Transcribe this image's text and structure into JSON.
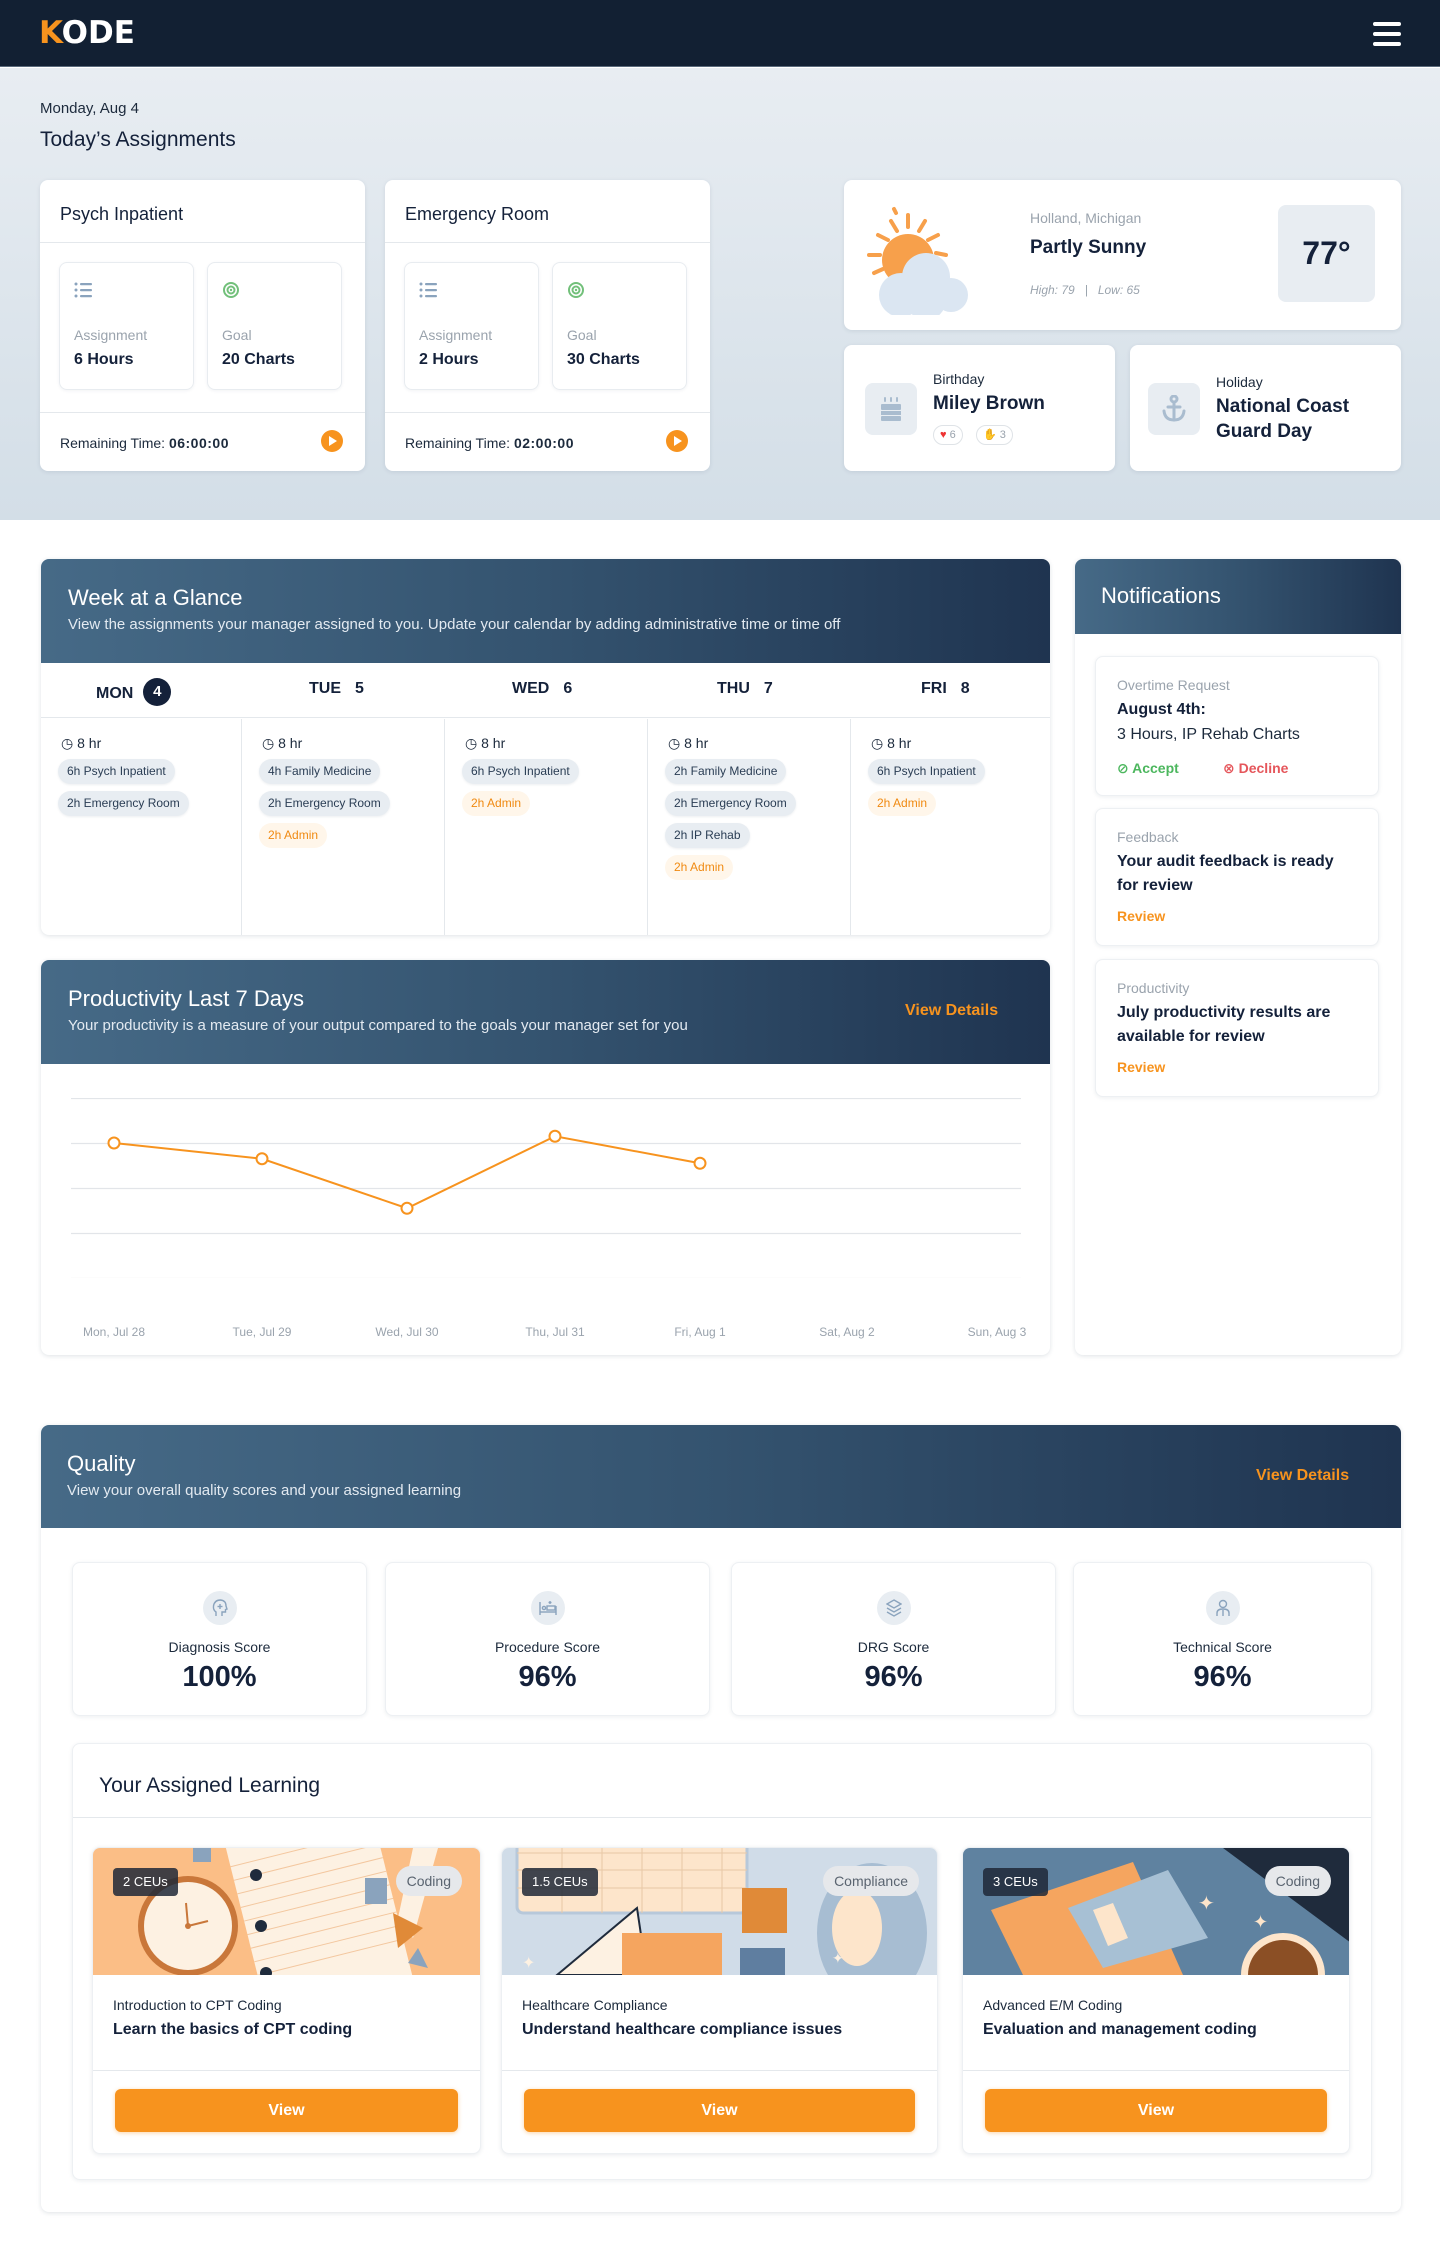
{
  "header": {
    "logo_first": "K",
    "logo_rest": "ODE",
    "menu_icon": "hamburger-menu-icon"
  },
  "today": {
    "date": "Monday, Aug 4",
    "title": "Today’s Assignments",
    "assignments": [
      {
        "title": "Psych Inpatient",
        "assignment_label": "Assignment",
        "assignment_value": "6 Hours",
        "goal_label": "Goal",
        "goal_value": "20 Charts",
        "remaining_label": "Remaining Time:",
        "remaining_value": "06:00:00"
      },
      {
        "title": "Emergency Room",
        "assignment_label": "Assignment",
        "assignment_value": "2 Hours",
        "goal_label": "Goal",
        "goal_value": "30 Charts",
        "remaining_label": "Remaining Time:",
        "remaining_value": "02:00:00"
      }
    ]
  },
  "weather": {
    "location": "Holland, Michigan",
    "condition": "Partly Sunny",
    "high_low": "High: 79   |   Low: 65",
    "temperature": "77°"
  },
  "birthday": {
    "kind": "Birthday",
    "name": "Miley Brown",
    "reactions": [
      {
        "icon": "heart",
        "count": "6"
      },
      {
        "icon": "clap",
        "count": "3"
      }
    ]
  },
  "holiday": {
    "kind": "Holiday",
    "name": "National Coast Guard Day"
  },
  "week": {
    "title": "Week at a Glance",
    "subtitle": "View the assignments your manager assigned to you. Update your calendar by adding administrative time or time off",
    "days": [
      {
        "day": "MON",
        "num": "4",
        "current": true,
        "hours": "8 hr",
        "items": [
          {
            "label": "6h Psych Inpatient",
            "type": "blue"
          },
          {
            "label": "2h Emergency Room",
            "type": "blue"
          }
        ]
      },
      {
        "day": "TUE",
        "num": "5",
        "current": false,
        "hours": "8 hr",
        "items": [
          {
            "label": "4h Family Medicine",
            "type": "blue"
          },
          {
            "label": "2h Emergency Room",
            "type": "blue"
          },
          {
            "label": "2h Admin",
            "type": "orange"
          }
        ]
      },
      {
        "day": "WED",
        "num": "6",
        "current": false,
        "hours": "8 hr",
        "items": [
          {
            "label": "6h Psych Inpatient",
            "type": "blue"
          },
          {
            "label": "2h Admin",
            "type": "orange"
          }
        ]
      },
      {
        "day": "THU",
        "num": "7",
        "current": false,
        "hours": "8 hr",
        "items": [
          {
            "label": "2h Family Medicine",
            "type": "blue"
          },
          {
            "label": "2h Emergency Room",
            "type": "blue"
          },
          {
            "label": "2h IP Rehab",
            "type": "blue"
          },
          {
            "label": "2h Admin",
            "type": "orange"
          }
        ]
      },
      {
        "day": "FRI",
        "num": "8",
        "current": false,
        "hours": "8 hr",
        "items": [
          {
            "label": "6h Psych Inpatient",
            "type": "blue"
          },
          {
            "label": "2h Admin",
            "type": "orange"
          }
        ]
      }
    ]
  },
  "notifications": {
    "title": "Notifications",
    "items": [
      {
        "kind": "Overtime Request",
        "title": "August 4th:",
        "body": "3 Hours, IP Rehab Charts",
        "accept": "Accept",
        "decline": "Decline"
      },
      {
        "kind": "Feedback",
        "title": "Your audit feedback is ready for review",
        "link": "Review"
      },
      {
        "kind": "Productivity",
        "title": "July productivity results are available for review",
        "link": "Review"
      }
    ]
  },
  "productivity": {
    "title": "Productivity Last 7 Days",
    "subtitle": "Your productivity is a measure of your output compared to the goals your manager set for you",
    "link": "View Details"
  },
  "chart_data": {
    "type": "line",
    "title": "Productivity Last 7 Days",
    "categories": [
      "Mon, Jul 28",
      "Tue, Jul 29",
      "Wed, Jul 30",
      "Thu, Jul 31",
      "Fri, Aug 1",
      "Sat, Aug 2",
      "Sun, Aug 3"
    ],
    "values": [
      3.0,
      2.65,
      1.55,
      3.15,
      2.55,
      null,
      null
    ],
    "xlabel": "",
    "ylabel": "",
    "ylim": [
      0,
      4
    ],
    "grid": true,
    "legend": "none",
    "color": "#f7931e"
  },
  "quality": {
    "title": "Quality",
    "subtitle": "View your overall quality scores and your assigned learning",
    "link": "View Details",
    "scores": [
      {
        "label": "Diagnosis Score",
        "value": "100%",
        "icon": "head-plus-icon"
      },
      {
        "label": "Procedure Score",
        "value": "96%",
        "icon": "bed-icon"
      },
      {
        "label": "DRG Score",
        "value": "96%",
        "icon": "layers-icon"
      },
      {
        "label": "Technical Score",
        "value": "96%",
        "icon": "user-icon"
      }
    ]
  },
  "learning": {
    "title": "Your Assigned Learning",
    "courses": [
      {
        "ceu": "2 CEUs",
        "tag": "Coding",
        "subtitle": "Introduction to CPT Coding",
        "title": "Learn the basics of CPT coding",
        "button": "View"
      },
      {
        "ceu": "1.5 CEUs",
        "tag": "Compliance",
        "subtitle": "Healthcare Compliance",
        "title": "Understand healthcare compliance issues",
        "button": "View"
      },
      {
        "ceu": "3 CEUs",
        "tag": "Coding",
        "subtitle": "Advanced E/M Coding",
        "title": "Evaluation and management coding",
        "button": "View"
      }
    ]
  },
  "colors": {
    "accent": "#f7931e",
    "navy": "#14213a",
    "header": "#122033",
    "accept": "#4cb75e",
    "decline": "#e5565b"
  }
}
